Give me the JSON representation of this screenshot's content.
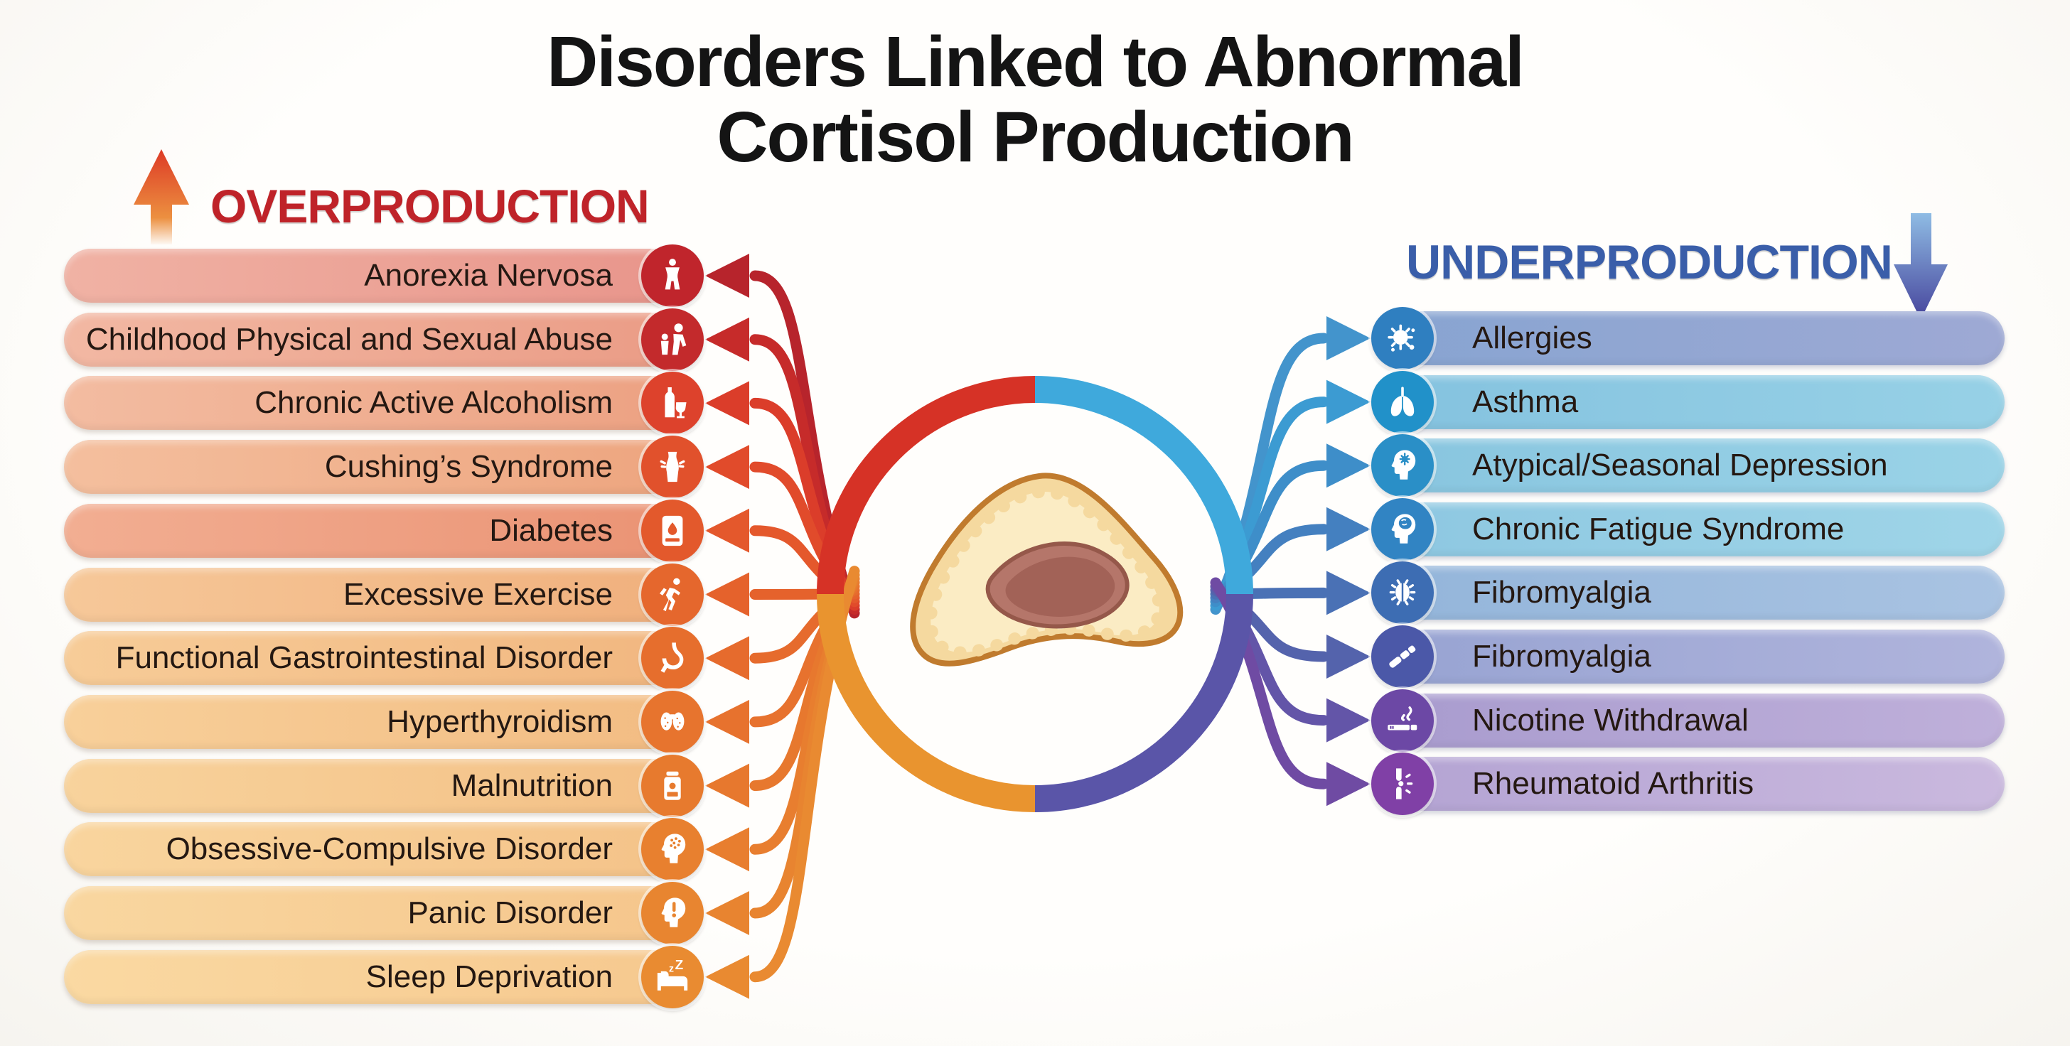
{
  "title": {
    "line1": "Disorders Linked to Abnormal",
    "line2": "Cortisol Production",
    "color": "#141414"
  },
  "overproduction": {
    "label": "OVERPRODUCTION",
    "color": "#bf2329",
    "arrow_direction": "up",
    "arrow_gradient": [
      "#dd3a26",
      "#ec9040"
    ],
    "items": [
      {
        "label": "Anorexia Nervosa",
        "icon": "thin-body-icon",
        "bar": [
          "#f0b2a4",
          "#e8948a"
        ],
        "icon_bg": "#c0252c",
        "arrow": "#b7242c"
      },
      {
        "label": "Childhood Physical and Sexual Abuse",
        "icon": "abuse-icon",
        "bar": [
          "#f2b8a3",
          "#ea9b85"
        ],
        "icon_bg": "#c32a2c",
        "arrow": "#c62b2a"
      },
      {
        "label": "Chronic Active Alcoholism",
        "icon": "bottle-glass-icon",
        "bar": [
          "#f3bca1",
          "#eca081"
        ],
        "icon_bg": "#dd422c",
        "arrow": "#db3d2a"
      },
      {
        "label": "Cushing’s Syndrome",
        "icon": "cushings-body-icon",
        "bar": [
          "#f4bf9e",
          "#eda47e"
        ],
        "icon_bg": "#e1512c",
        "arrow": "#e14b2b"
      },
      {
        "label": "Diabetes",
        "icon": "glucose-meter-icon",
        "bar": [
          "#f2ae92",
          "#ea9273"
        ],
        "icon_bg": "#e3592c",
        "arrow": "#e4582c"
      },
      {
        "label": "Excessive Exercise",
        "icon": "running-icon",
        "bar": [
          "#f6c899",
          "#f0af7c"
        ],
        "icon_bg": "#e5672d",
        "arrow": "#e5622c"
      },
      {
        "label": "Functional Gastrointestinal Disorder",
        "icon": "stomach-icon",
        "bar": [
          "#f7cc98",
          "#f1b67f"
        ],
        "icon_bg": "#e66e2d",
        "arrow": "#e66b2d"
      },
      {
        "label": "Hyperthyroidism",
        "icon": "thyroid-icon",
        "bar": [
          "#f8d09a",
          "#f2bb82"
        ],
        "icon_bg": "#e7742e",
        "arrow": "#e7722e"
      },
      {
        "label": "Malnutrition",
        "icon": "food-jar-icon",
        "bar": [
          "#f8d39c",
          "#f3bf85"
        ],
        "icon_bg": "#e77a2e",
        "arrow": "#e7782e"
      },
      {
        "label": "Obsessive-Compulsive Disorder",
        "icon": "brain-head-icon",
        "bar": [
          "#f9d59e",
          "#f4c288"
        ],
        "icon_bg": "#e8802f",
        "arrow": "#e87e2f"
      },
      {
        "label": "Panic Disorder",
        "icon": "panic-head-icon",
        "bar": [
          "#f9d7a0",
          "#f5c58b"
        ],
        "icon_bg": "#e88530",
        "arrow": "#e88430"
      },
      {
        "label": "Sleep Deprivation",
        "icon": "sleep-bed-icon",
        "bar": [
          "#fad9a2",
          "#f6c88e"
        ],
        "icon_bg": "#e98b31",
        "arrow": "#e98a31"
      }
    ]
  },
  "underproduction": {
    "label": "UNDERPRODUCTION",
    "color": "#3a5ea9",
    "arrow_direction": "down",
    "arrow_gradient": [
      "#8fbce4",
      "#46449c"
    ],
    "items": [
      {
        "label": "Allergies",
        "icon": "allergy-pollen-icon",
        "bar": [
          "#87a4d1",
          "#9ea9d4"
        ],
        "icon_bg": "#2f7fc0",
        "arrow": "#4394cc"
      },
      {
        "label": "Asthma",
        "icon": "lungs-icon",
        "bar": [
          "#84c2df",
          "#97d1e6"
        ],
        "icon_bg": "#2191c9",
        "arrow": "#3c9bd2"
      },
      {
        "label": "Atypical/Seasonal Depression",
        "icon": "depression-head-icon",
        "bar": [
          "#88c5df",
          "#9ad3e7"
        ],
        "icon_bg": "#2a8fc7",
        "arrow": "#3e8ec9"
      },
      {
        "label": "Chronic Fatigue Syndrome",
        "icon": "fatigue-head-icon",
        "bar": [
          "#8dc7e1",
          "#9fd5e8"
        ],
        "icon_bg": "#3184c3",
        "arrow": "#4480c0"
      },
      {
        "label": "Fibromyalgia",
        "icon": "fibromyalgia-body-icon",
        "bar": [
          "#93b5da",
          "#a9c3e2"
        ],
        "icon_bg": "#3d6db3",
        "arrow": "#4a71b5"
      },
      {
        "label": "Fibromyalgia",
        "icon": "muscle-strip-icon",
        "bar": [
          "#97a3d2",
          "#b0b4dc"
        ],
        "icon_bg": "#4b58a8",
        "arrow": "#5463ac"
      },
      {
        "label": "Nicotine Withdrawal",
        "icon": "cigarette-icon",
        "bar": [
          "#a89bce",
          "#bfb0da"
        ],
        "icon_bg": "#6c48a5",
        "arrow": "#6355a8"
      },
      {
        "label": "Rheumatoid Arthritis",
        "icon": "joint-icon",
        "bar": [
          "#b3a3d3",
          "#cab9de"
        ],
        "icon_bg": "#8040a6",
        "arrow": "#6f4ba3"
      }
    ]
  },
  "center": {
    "illustration": "adrenal-gland-cross-section",
    "ring": {
      "top_left": "#d63226",
      "top_right": "#3fa9dc",
      "bottom_left": "#e9942f",
      "bottom_right": "#5a55a8"
    },
    "gland_colors": {
      "cortex_outline": "#c07b2e",
      "cortex_fill": "#f5d99f",
      "cortex_inner": "#fbecc4",
      "medulla_fill": "#b5766a",
      "medulla_outline": "#95584a",
      "medulla_dark": "#a26257"
    }
  }
}
